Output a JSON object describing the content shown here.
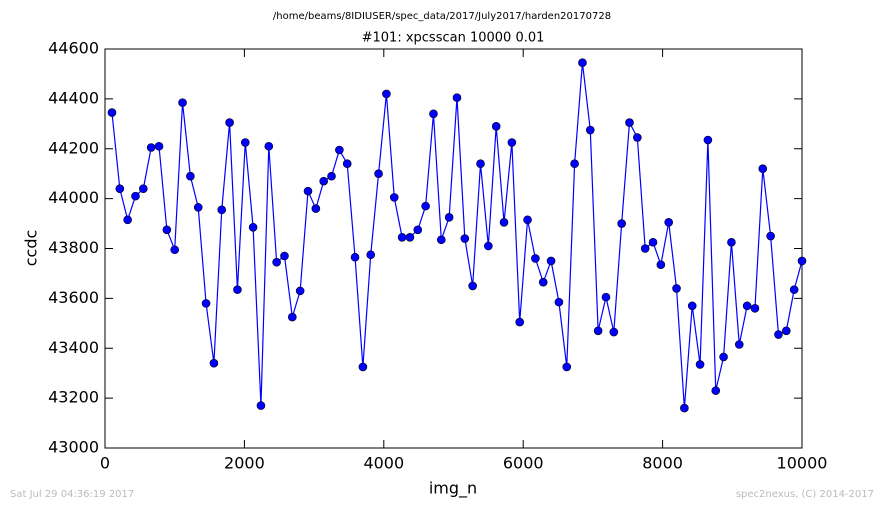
{
  "chart_data": {
    "type": "line",
    "suptitle": "/home/beams/8IDIUSER/spec_data/2017/July2017/harden20170728",
    "title": "#101: xpcsscan 10000 0.01",
    "x_label": "img_n",
    "y_label": "ccdc",
    "footer_left": "Sat Jul 29 04:36:19 2017",
    "footer_right": "spec2nexus, (C) 2014-2017",
    "x": [
      100,
      212.5,
      325,
      437.5,
      550,
      662.5,
      775,
      887.5,
      1000,
      1112.5,
      1225,
      1337.5,
      1450,
      1562.5,
      1675,
      1787.5,
      1900,
      2012.5,
      2125,
      2237.5,
      2350,
      2462.5,
      2575,
      2687.5,
      2800,
      2912.5,
      3025,
      3137.5,
      3250,
      3362.5,
      3475,
      3587.5,
      3700,
      3812.5,
      3925,
      4037.5,
      4150,
      4262.5,
      4375,
      4487.5,
      4600,
      4712.5,
      4825,
      4937.5,
      5050,
      5162.5,
      5275,
      5387.5,
      5500,
      5612.5,
      5725,
      5837.5,
      5950,
      6062.5,
      6175,
      6287.5,
      6400,
      6512.5,
      6625,
      6737.5,
      6850,
      6962.5,
      7075,
      7187.5,
      7300,
      7412.5,
      7525,
      7637.5,
      7750,
      7862.5,
      7975,
      8087.5,
      8200,
      8312.5,
      8425,
      8537.5,
      8650,
      8762.5,
      8875,
      8987.5,
      9100,
      9212.5,
      9325,
      9437.5,
      9550,
      9662.5,
      9775,
      9887.5,
      10000
    ],
    "series": [
      {
        "color": "#0000ff",
        "values": [
          44345,
          44040,
          43915,
          44010,
          44040,
          44205,
          44210,
          43875,
          43795,
          44385,
          44090,
          43965,
          43580,
          43340,
          43955,
          44305,
          43635,
          44225,
          43885,
          43170,
          44210,
          43745,
          43770,
          43525,
          43630,
          44030,
          43960,
          44070,
          44090,
          44195,
          44140,
          43765,
          43325,
          43775,
          44100,
          44420,
          44005,
          43845,
          43845,
          43875,
          43970,
          44340,
          43835,
          43925,
          44405,
          43840,
          43650,
          44140,
          43810,
          44290,
          43905,
          44225,
          43505,
          43915,
          43760,
          43665,
          43750,
          43585,
          43325,
          44140,
          44545,
          44275,
          43470,
          43605,
          43465,
          43900,
          44305,
          44245,
          43800,
          43825,
          43735,
          43905,
          43640,
          43160,
          43570,
          43335,
          44235,
          43230,
          43365,
          43825,
          43415,
          43570,
          43560,
          44120,
          43850,
          43455,
          43470,
          43635,
          43750
        ]
      }
    ],
    "xlim": [
      0,
      10000
    ],
    "xticks": [
      0,
      2000,
      4000,
      6000,
      8000,
      10000
    ],
    "ylim": [
      43000,
      44600
    ],
    "yticks": [
      43000,
      43200,
      43400,
      43600,
      43800,
      44000,
      44200,
      44400,
      44600
    ],
    "grid": false,
    "markers": true
  }
}
